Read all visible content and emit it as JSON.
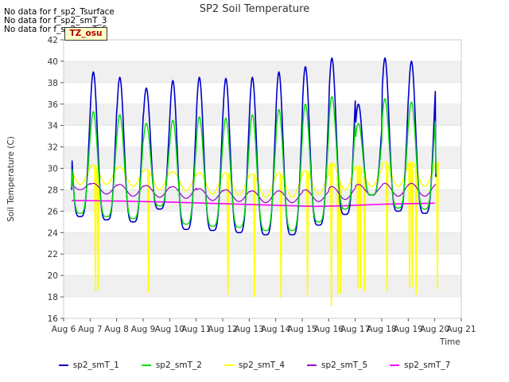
{
  "nodata_messages": [
    "No data for f_sp2_Tsurface",
    "No data for f_sp2_smT_3",
    "No data for f_sp2_smT_6"
  ],
  "tz_label": "TZ_osu",
  "chart_data": {
    "type": "line",
    "title": "SP2 Soil Temperature",
    "xlabel": "Time",
    "ylabel": "Soil Temperature (C)",
    "ylim": [
      16,
      42
    ],
    "yticks": [
      16,
      18,
      20,
      22,
      24,
      26,
      28,
      30,
      32,
      34,
      36,
      38,
      40,
      42
    ],
    "xlim": [
      6,
      21
    ],
    "xticks": [
      6,
      7,
      8,
      9,
      10,
      11,
      12,
      13,
      14,
      15,
      16,
      17,
      18,
      19,
      20,
      21
    ],
    "xtick_labels": [
      "Aug 6",
      "Aug 7",
      "Aug 8",
      "Aug 9",
      "Aug 10",
      "Aug 11",
      "Aug 12",
      "Aug 13",
      "Aug 14",
      "Aug 15",
      "Aug 16",
      "Aug 17",
      "Aug 18",
      "Aug 19",
      "Aug 20",
      "Aug 21"
    ],
    "grid": "horizontal-bands",
    "legend_position": "bottom",
    "series": [
      {
        "name": "sp2_smT_1",
        "color": "#0000cc",
        "daily_min": [
          25.5,
          25.2,
          25.0,
          26.2,
          24.3,
          24.2,
          24.0,
          23.8,
          23.8,
          24.7,
          25.7,
          27.5,
          26.0,
          25.8
        ],
        "daily_max": [
          38.7,
          39.0,
          38.5,
          37.5,
          38.2,
          38.5,
          38.4,
          38.5,
          39.0,
          39.5,
          40.3,
          36.0,
          40.3,
          40.0
        ],
        "start_value": 28.0,
        "end_value": 29.2
      },
      {
        "name": "sp2_smT_2",
        "color": "#00dd00",
        "daily_min": [
          25.8,
          25.5,
          25.3,
          26.5,
          24.8,
          24.6,
          24.5,
          24.2,
          24.2,
          25.0,
          26.2,
          27.5,
          26.3,
          26.2
        ],
        "daily_max": [
          35.3,
          35.3,
          35.0,
          34.2,
          34.5,
          34.8,
          34.7,
          35.0,
          35.5,
          36.0,
          36.7,
          34.2,
          36.5,
          36.2
        ],
        "start_value": 28.2,
        "end_value": 29.5
      },
      {
        "name": "sp2_smT_4",
        "color": "#ffff00",
        "daily_min": [
          28.5,
          28.5,
          28.3,
          28.0,
          27.9,
          27.6,
          27.5,
          27.3,
          27.3,
          27.6,
          28.0,
          28.3,
          28.3,
          28.3
        ],
        "daily_max": [
          30.3,
          30.3,
          30.1,
          29.9,
          29.7,
          29.6,
          29.6,
          29.5,
          29.6,
          29.8,
          30.5,
          30.2,
          30.6,
          30.6
        ],
        "start_value": 30.0,
        "end_value": 30.6,
        "dropouts": [
          {
            "x": 7.2,
            "y": 18.6
          },
          {
            "x": 7.3,
            "y": 18.6
          },
          {
            "x": 9.2,
            "y": 18.4
          },
          {
            "x": 12.2,
            "y": 18.2
          },
          {
            "x": 13.2,
            "y": 18.0
          },
          {
            "x": 14.2,
            "y": 17.9
          },
          {
            "x": 15.2,
            "y": 18.1
          },
          {
            "x": 16.1,
            "y": 17.1
          },
          {
            "x": 16.35,
            "y": 18.2
          },
          {
            "x": 16.45,
            "y": 18.3
          },
          {
            "x": 17.1,
            "y": 18.7
          },
          {
            "x": 17.2,
            "y": 18.8
          },
          {
            "x": 17.35,
            "y": 18.5
          },
          {
            "x": 18.2,
            "y": 18.5
          },
          {
            "x": 19.05,
            "y": 18.8
          },
          {
            "x": 19.15,
            "y": 18.9
          },
          {
            "x": 19.3,
            "y": 18.2
          },
          {
            "x": 20.1,
            "y": 18.7
          }
        ]
      },
      {
        "name": "sp2_smT_5",
        "color": "#9900cc",
        "daily_min": [
          28.0,
          27.6,
          27.4,
          27.3,
          27.2,
          27.0,
          26.9,
          26.8,
          26.8,
          26.9,
          27.1,
          27.5,
          27.4,
          27.4
        ],
        "daily_max": [
          28.7,
          28.6,
          28.5,
          28.4,
          28.3,
          28.1,
          28.0,
          27.9,
          27.9,
          28.0,
          28.3,
          28.5,
          28.6,
          28.6
        ],
        "start_value": 28.9,
        "end_value": 28.5
      },
      {
        "name": "sp2_smT_7",
        "color": "#ff00ff",
        "points": [
          [
            6.3,
            27.0
          ],
          [
            8.0,
            26.95
          ],
          [
            10.0,
            26.85
          ],
          [
            12.0,
            26.7
          ],
          [
            14.0,
            26.55
          ],
          [
            15.5,
            26.45
          ],
          [
            16.5,
            26.5
          ],
          [
            18.0,
            26.65
          ],
          [
            20.0,
            26.75
          ]
        ]
      }
    ]
  }
}
